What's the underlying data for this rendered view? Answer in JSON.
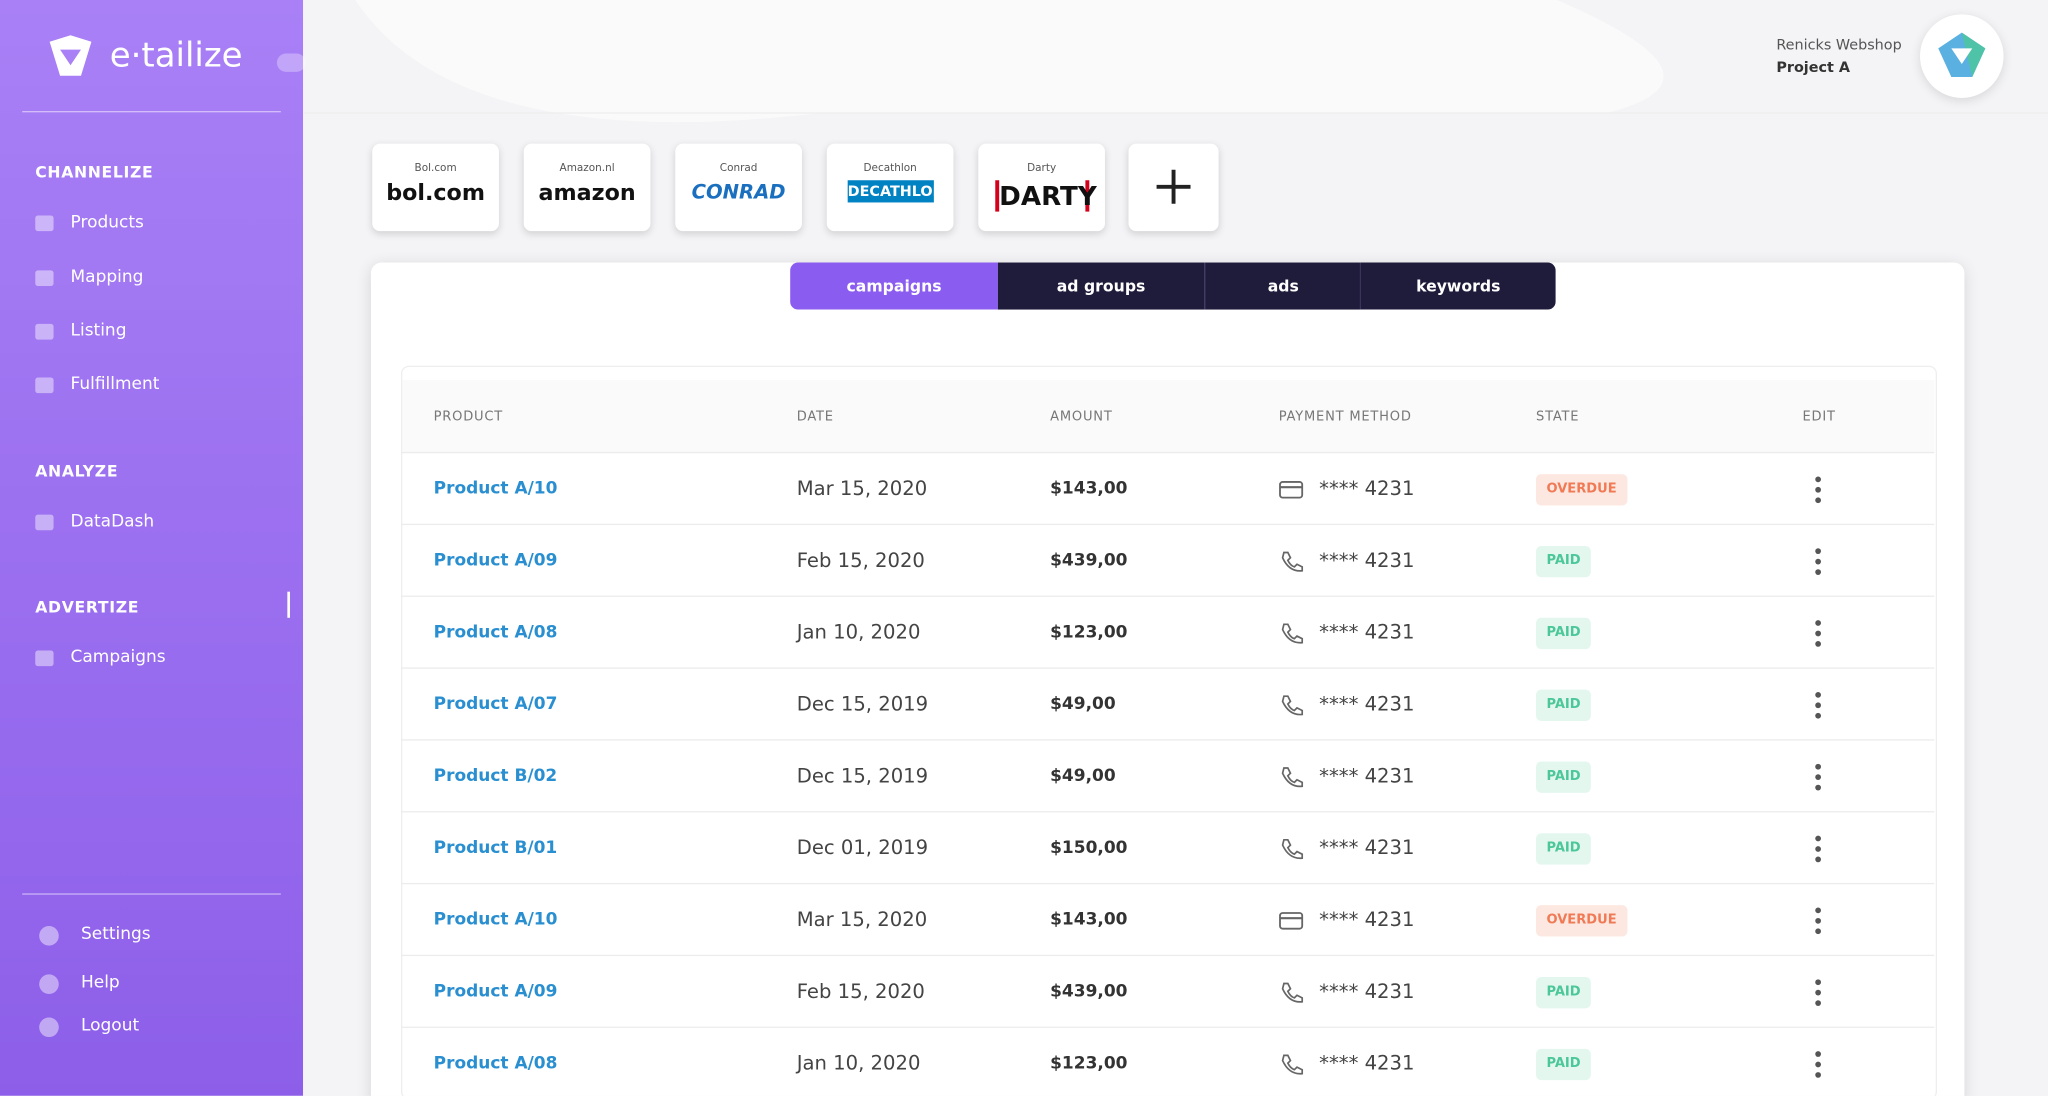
{
  "sidebar": {
    "brand": "e·tailize",
    "sections": [
      {
        "title": "CHANNELIZE",
        "items": [
          "Products",
          "Mapping",
          "Listing",
          "Fulfillment"
        ]
      },
      {
        "title": "ANALYZE",
        "items": [
          "DataDash"
        ]
      },
      {
        "title": "ADVERTIZE",
        "items": [
          "Campaigns"
        ]
      }
    ],
    "bottom": [
      "Settings",
      "Help",
      "Logout"
    ]
  },
  "header": {
    "shop": "Renicks Webshop",
    "project": "Project A"
  },
  "channels": [
    {
      "label": "Bol.com",
      "logo": "bol.com"
    },
    {
      "label": "Amazon.nl",
      "logo": "amazon"
    },
    {
      "label": "Conrad",
      "logo": "CONRAD"
    },
    {
      "label": "Decathlon",
      "logo": "DECATHLON"
    },
    {
      "label": "Darty",
      "logo": "DARTY"
    }
  ],
  "tabs": [
    "campaigns",
    "ad groups",
    "ads",
    "keywords"
  ],
  "table": {
    "columns": [
      "PRODUCT",
      "DATE",
      "AMOUNT",
      "PAYMENT METHOD",
      "STATE",
      "EDIT"
    ],
    "rows": [
      [
        "Product A/10",
        "Mar 15, 2020",
        "$143,00",
        "**** 4231",
        "OVERDUE"
      ],
      [
        "Product A/09",
        "Feb 15, 2020",
        "$439,00",
        "**** 4231",
        "PAID"
      ],
      [
        "Product A/08",
        "Jan 10, 2020",
        "$123,00",
        "**** 4231",
        "PAID"
      ],
      [
        "Product A/07",
        "Dec 15, 2019",
        "$49,00",
        "**** 4231",
        "PAID"
      ],
      [
        "Product B/02",
        "Dec 15, 2019",
        "$49,00",
        "**** 4231",
        "PAID"
      ],
      [
        "Product B/01",
        "Dec 01, 2019",
        "$150,00",
        "**** 4231",
        "PAID"
      ],
      [
        "Product A/10",
        "Mar 15, 2020",
        "$143,00",
        "**** 4231",
        "OVERDUE"
      ],
      [
        "Product A/09",
        "Feb 15, 2020",
        "$439,00",
        "**** 4231",
        "PAID"
      ],
      [
        "Product A/08",
        "Jan 10, 2020",
        "$123,00",
        "**** 4231",
        "PAID"
      ]
    ]
  }
}
